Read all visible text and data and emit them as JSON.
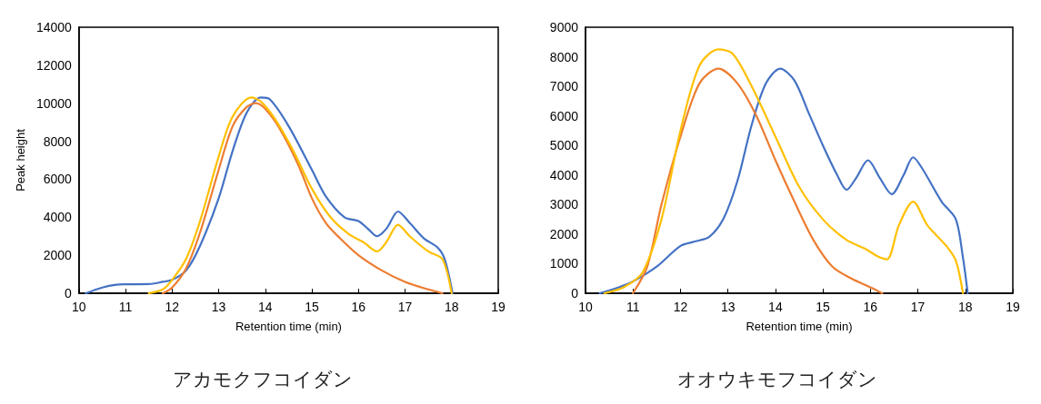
{
  "chart_data": [
    {
      "type": "line",
      "title": "アカモクフコイダン",
      "xlabel": "Retention time (min)",
      "ylabel": "Peak height",
      "xlim": [
        10,
        19
      ],
      "xticks": [
        10,
        11,
        12,
        13,
        14,
        15,
        16,
        17,
        18,
        19
      ],
      "ylim": [
        0,
        14000
      ],
      "yticks": [
        0,
        2000,
        4000,
        6000,
        8000,
        10000,
        12000,
        14000
      ],
      "grid": false,
      "marker": "none",
      "line_style": "solid",
      "series": [
        {
          "color": "#4472c4",
          "x": [
            10.15,
            10.5,
            10.8,
            11,
            11.5,
            11.8,
            12,
            12.3,
            12.6,
            13,
            13.3,
            13.6,
            13.9,
            14.1,
            14.5,
            15,
            15.3,
            15.7,
            16,
            16.2,
            16.4,
            16.6,
            16.85,
            17.1,
            17.4,
            17.7,
            17.85,
            18.02
          ],
          "values": [
            0,
            300,
            450,
            470,
            480,
            600,
            700,
            1200,
            2500,
            5000,
            7500,
            9500,
            10300,
            10200,
            8800,
            6500,
            5100,
            4000,
            3800,
            3400,
            3000,
            3400,
            4300,
            3700,
            2900,
            2400,
            1800,
            0
          ]
        },
        {
          "color": "#ed7d31",
          "x": [
            11.8,
            12,
            12.3,
            12.6,
            13,
            13.3,
            13.6,
            13.8,
            14,
            14.3,
            14.7,
            15,
            15.3,
            15.6,
            16,
            16.5,
            17,
            17.5,
            17.8
          ],
          "values": [
            0,
            300,
            1300,
            3200,
            6500,
            8800,
            9800,
            10000,
            9700,
            8700,
            6800,
            5000,
            3700,
            2900,
            2000,
            1200,
            600,
            200,
            0
          ]
        },
        {
          "color": "#ffc000",
          "x": [
            11.5,
            11.8,
            12,
            12.3,
            12.6,
            13,
            13.3,
            13.7,
            13.9,
            14.2,
            14.6,
            15,
            15.4,
            15.8,
            16.1,
            16.4,
            16.6,
            16.85,
            17.1,
            17.5,
            17.8,
            18
          ],
          "values": [
            0,
            200,
            700,
            1800,
            3800,
            7200,
            9300,
            10300,
            10100,
            9200,
            7500,
            5500,
            4000,
            3100,
            2700,
            2200,
            2700,
            3600,
            3000,
            2200,
            1800,
            0
          ]
        }
      ]
    },
    {
      "type": "line",
      "title": "オオウキモフコイダン",
      "xlabel": "Retention time (min)",
      "xlim": [
        10,
        19
      ],
      "xticks": [
        10,
        11,
        12,
        13,
        14,
        15,
        16,
        17,
        18,
        19
      ],
      "ylim": [
        0,
        9000
      ],
      "yticks": [
        0,
        1000,
        2000,
        3000,
        4000,
        5000,
        6000,
        7000,
        8000,
        9000
      ],
      "grid": false,
      "marker": "none",
      "line_style": "solid",
      "series": [
        {
          "color": "#4472c4",
          "x": [
            10.3,
            10.7,
            11,
            11.5,
            12,
            12.3,
            12.6,
            12.9,
            13.2,
            13.5,
            13.8,
            14.1,
            14.4,
            14.7,
            15,
            15.3,
            15.5,
            15.7,
            15.95,
            16.2,
            16.45,
            16.7,
            16.9,
            17.1,
            17.5,
            17.8,
            17.95,
            18.05
          ],
          "values": [
            0,
            200,
            400,
            900,
            1600,
            1750,
            1900,
            2500,
            3800,
            5700,
            7100,
            7600,
            7200,
            6100,
            5000,
            4000,
            3500,
            3900,
            4500,
            3900,
            3350,
            4000,
            4600,
            4200,
            3100,
            2500,
            1200,
            0
          ]
        },
        {
          "color": "#ed7d31",
          "x": [
            11,
            11.3,
            11.6,
            12,
            12.4,
            12.8,
            13.2,
            13.6,
            14,
            14.4,
            14.8,
            15.2,
            15.6,
            16,
            16.25
          ],
          "values": [
            0,
            900,
            3000,
            5300,
            7100,
            7600,
            7100,
            6000,
            4500,
            3100,
            1800,
            900,
            500,
            200,
            0
          ]
        },
        {
          "color": "#ffc000",
          "x": [
            10.4,
            10.8,
            11.2,
            11.6,
            12,
            12.4,
            12.8,
            13.1,
            13.5,
            14,
            14.5,
            15,
            15.5,
            15.9,
            16.15,
            16.35,
            16.6,
            16.9,
            17.2,
            17.6,
            17.8,
            17.95
          ],
          "values": [
            0,
            200,
            700,
            2500,
            5500,
            7700,
            8250,
            8100,
            7000,
            5300,
            3600,
            2500,
            1800,
            1500,
            1250,
            1150,
            2300,
            3100,
            2300,
            1600,
            1100,
            0
          ]
        }
      ]
    }
  ]
}
